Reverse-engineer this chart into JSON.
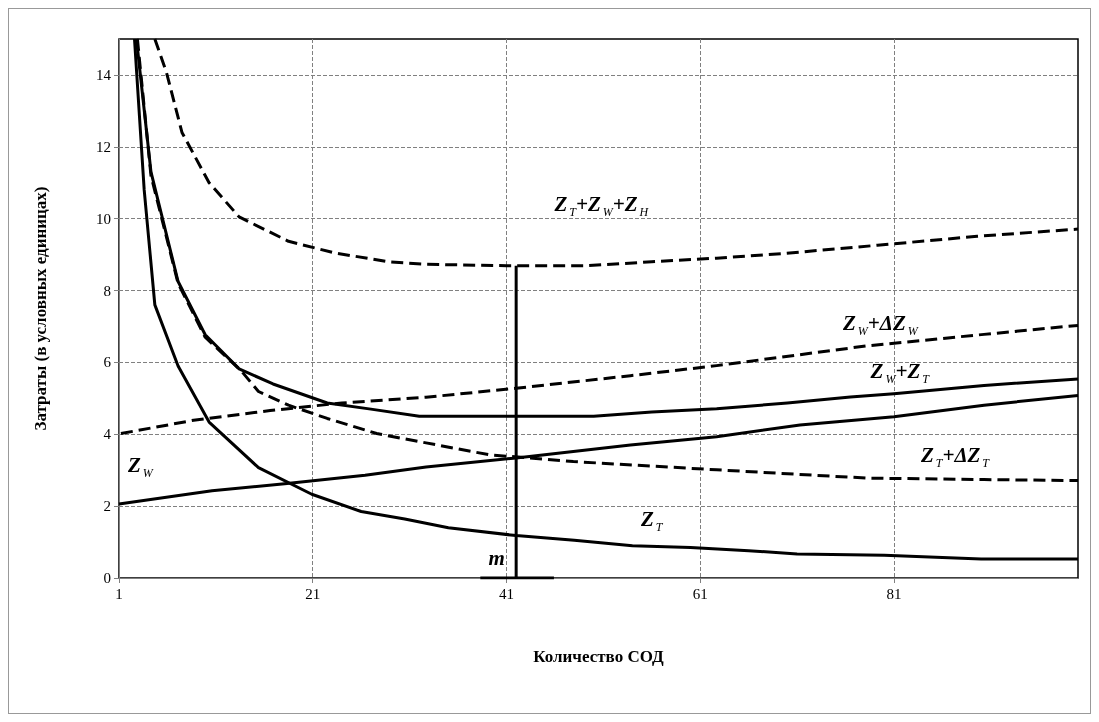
{
  "chart_data": {
    "type": "line",
    "xlabel": "Количество СОД",
    "ylabel": "Затраты (в условных единицах)",
    "xlim": [
      1,
      100
    ],
    "xticks": [
      1,
      21,
      41,
      61,
      81
    ],
    "ylim": [
      0,
      15
    ],
    "yticks": [
      0,
      2,
      4,
      6,
      8,
      10,
      12,
      14
    ],
    "grid": true,
    "marker": "none",
    "series": [
      {
        "name": "Z$_{T}$",
        "color": "#000000",
        "line_style": "solid",
        "x": [
          2.6,
          3.6,
          4.7,
          7.1,
          10.3,
          15.4,
          20.9,
          26,
          30.5,
          35,
          42,
          48,
          54,
          60,
          66,
          71,
          80,
          90,
          100
        ],
        "values": [
          15,
          10.8,
          7.6,
          5.9,
          4.34,
          3.07,
          2.33,
          1.85,
          1.64,
          1.4,
          1.18,
          1.05,
          0.9,
          0.85,
          0.76,
          0.67,
          0.63,
          0.53,
          0.53
        ]
      },
      {
        "name": "Z$_{W}$",
        "color": "#000000",
        "line_style": "solid",
        "x": [
          1,
          10.6,
          18.1,
          26.4,
          32.7,
          42,
          53.8,
          62.7,
          71.3,
          81,
          90.3,
          100
        ],
        "values": [
          2.06,
          2.43,
          2.62,
          2.86,
          3.09,
          3.34,
          3.7,
          3.93,
          4.26,
          4.49,
          4.81,
          5.08
        ]
      },
      {
        "name": "Z$_{W}$+Z$_{T}$",
        "color": "#000000",
        "line_style": "solid",
        "x": [
          2.8,
          4.3,
          7.1,
          9.9,
          13.4,
          16.9,
          22.5,
          27,
          32,
          41,
          50,
          56,
          62.7,
          70,
          76.5,
          81,
          90.3,
          100
        ],
        "values": [
          15,
          11.3,
          8.25,
          6.77,
          5.82,
          5.4,
          4.87,
          4.7,
          4.5,
          4.5,
          4.5,
          4.62,
          4.71,
          4.87,
          5.04,
          5.13,
          5.36,
          5.54
        ]
      },
      {
        "name": "Z$_{T}$+Z$_{W}$+Z$_{H}$",
        "color": "#000000",
        "line_style": "dashed",
        "x": [
          4.7,
          5.9,
          7.5,
          10.3,
          13.4,
          18.5,
          23.2,
          28.8,
          32.7,
          41,
          49.3,
          56,
          62.7,
          69.6,
          79.3,
          89.6,
          100
        ],
        "values": [
          15,
          14.07,
          12.4,
          11.0,
          10.05,
          9.37,
          9.05,
          8.8,
          8.73,
          8.69,
          8.69,
          8.8,
          8.9,
          9.03,
          9.26,
          9.51,
          9.71
        ]
      },
      {
        "name": "Z$_{W}$+ΔZ$_{W}$",
        "color": "#000000",
        "line_style": "dashed",
        "x": [
          1.2,
          8.7,
          16.6,
          24,
          32.7,
          42,
          53.8,
          62.7,
          78.2,
          90.3,
          100
        ],
        "values": [
          4.02,
          4.39,
          4.66,
          4.87,
          5.03,
          5.28,
          5.63,
          5.91,
          6.46,
          6.78,
          7.03
        ]
      },
      {
        "name": "Z$_{T}$+ΔZ$_{T}$",
        "color": "#000000",
        "line_style": "dashed",
        "x": [
          2.9,
          4.3,
          7.1,
          9.9,
          13.6,
          15.4,
          18.5,
          22.5,
          27.6,
          32.7,
          39.2,
          47.9,
          62.7,
          78.2,
          90.3,
          100
        ],
        "values": [
          15,
          11.2,
          8.2,
          6.7,
          5.77,
          5.19,
          4.81,
          4.44,
          4.02,
          3.76,
          3.43,
          3.24,
          3.01,
          2.78,
          2.74,
          2.71
        ]
      },
      {
        "color": "#000000",
        "line_style": "solid",
        "x": [
          42,
          42
        ],
        "values": [
          0,
          8.69
        ]
      },
      {
        "color": "#000000",
        "line_style": "solid",
        "x": [
          38.3,
          45.9
        ],
        "values": [
          0,
          0
        ]
      }
    ],
    "annotations": [
      "m"
    ]
  }
}
